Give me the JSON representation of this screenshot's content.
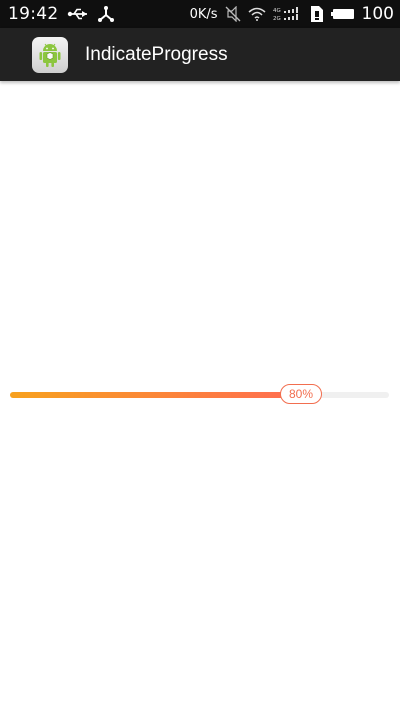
{
  "status_bar": {
    "time": "19:42",
    "data_rate": "0K/s",
    "network_labels": [
      "4G",
      "2G"
    ],
    "battery_level": "100",
    "icons": [
      "usb-icon",
      "share-icon",
      "mute-icon",
      "wifi-icon",
      "signal-icon",
      "sim-icon",
      "battery-icon"
    ]
  },
  "app_bar": {
    "title": "IndicateProgress",
    "icon": "android-app-icon"
  },
  "progress": {
    "value": 80,
    "label": "80%",
    "start_color": "#f7a11e",
    "end_color": "#ff6f4e",
    "track_color": "#f0f0f0"
  }
}
